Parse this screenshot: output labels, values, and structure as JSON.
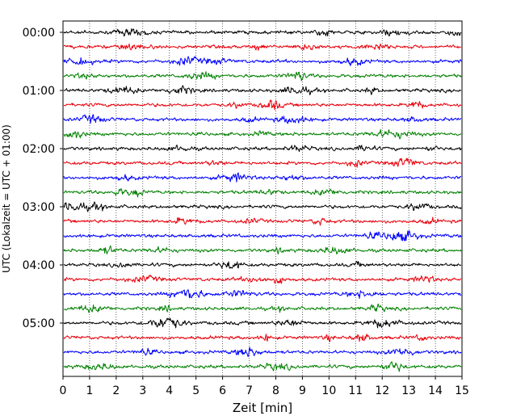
{
  "chart_data": {
    "type": "line",
    "title": "",
    "xlabel": "Zeit  [min]",
    "ylabel": "UTC (Lokalzeit = UTC + 01:00)",
    "xlim": [
      0,
      15
    ],
    "x_ticks": [
      "0",
      "1",
      "2",
      "3",
      "4",
      "5",
      "6",
      "7",
      "8",
      "9",
      "10",
      "11",
      "12",
      "13",
      "14",
      "15"
    ],
    "y_tick_labels": [
      "00:00",
      "01:00",
      "02:00",
      "03:00",
      "04:00",
      "05:00"
    ],
    "grid": "vertical dotted lines at each minute",
    "trace_colors": [
      "#000000",
      "#e8000b",
      "#0000ff",
      "#008000"
    ],
    "traces": [
      {
        "start": "00:00"
      },
      {
        "start": "00:15"
      },
      {
        "start": "00:30"
      },
      {
        "start": "00:45"
      },
      {
        "start": "01:00"
      },
      {
        "start": "01:15"
      },
      {
        "start": "01:30"
      },
      {
        "start": "01:45"
      },
      {
        "start": "02:00"
      },
      {
        "start": "02:15"
      },
      {
        "start": "02:30"
      },
      {
        "start": "02:45"
      },
      {
        "start": "03:00"
      },
      {
        "start": "03:15"
      },
      {
        "start": "03:30"
      },
      {
        "start": "03:45"
      },
      {
        "start": "04:00"
      },
      {
        "start": "04:15"
      },
      {
        "start": "04:30"
      },
      {
        "start": "04:45"
      },
      {
        "start": "05:00"
      },
      {
        "start": "05:15"
      },
      {
        "start": "05:30"
      },
      {
        "start": "05:45"
      }
    ]
  }
}
